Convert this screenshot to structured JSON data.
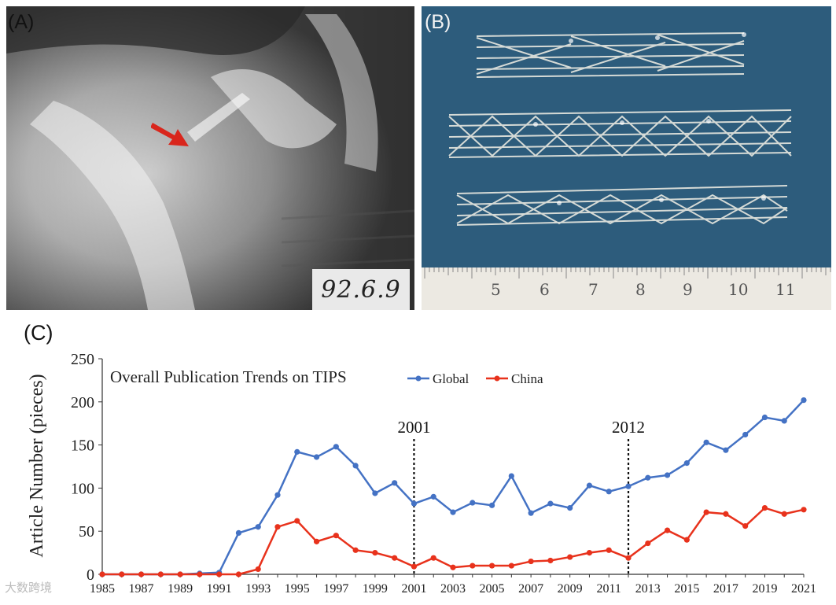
{
  "panels": {
    "a": {
      "label": "(A)",
      "date_stamp": "92.6.9"
    },
    "b": {
      "label": "(B)",
      "ruler_numbers": [
        "5",
        "6",
        "7",
        "8",
        "9",
        "10",
        "11"
      ]
    },
    "c": {
      "label": "(C)"
    }
  },
  "colors": {
    "global": "#4472c4",
    "china": "#e8321c",
    "arrow": "#d9261c"
  },
  "chart_data": {
    "type": "line",
    "title": "Overall Publication Trends on TIPS",
    "ylabel": "Article Number (pieces)",
    "xlabel": "",
    "ylim": [
      0,
      250
    ],
    "yticks": [
      0,
      50,
      100,
      150,
      200,
      250
    ],
    "x": [
      1985,
      1986,
      1987,
      1988,
      1989,
      1990,
      1991,
      1992,
      1993,
      1994,
      1995,
      1996,
      1997,
      1998,
      1999,
      2000,
      2001,
      2002,
      2003,
      2004,
      2005,
      2006,
      2007,
      2008,
      2009,
      2010,
      2011,
      2012,
      2013,
      2014,
      2015,
      2016,
      2017,
      2018,
      2019,
      2020,
      2021
    ],
    "xtick_labels": [
      "1985",
      "1987",
      "1989",
      "1991",
      "1993",
      "1995",
      "1997",
      "1999",
      "2001",
      "2003",
      "2005",
      "2007",
      "2009",
      "2011",
      "2013",
      "2015",
      "2017",
      "2019",
      "2021"
    ],
    "xtick_years": [
      1985,
      1987,
      1989,
      1991,
      1993,
      1995,
      1997,
      1999,
      2001,
      2003,
      2005,
      2007,
      2009,
      2011,
      2013,
      2015,
      2017,
      2019,
      2021
    ],
    "series": [
      {
        "name": "Global",
        "values": [
          0,
          0,
          0,
          0,
          0,
          1,
          2,
          48,
          55,
          92,
          142,
          136,
          148,
          126,
          94,
          106,
          82,
          90,
          72,
          83,
          80,
          114,
          71,
          82,
          77,
          103,
          96,
          102,
          112,
          115,
          129,
          153,
          144,
          162,
          182,
          178,
          202
        ]
      },
      {
        "name": "China",
        "values": [
          0,
          0,
          0,
          0,
          0,
          0,
          0,
          0,
          6,
          55,
          62,
          38,
          45,
          28,
          25,
          19,
          9,
          19,
          8,
          10,
          10,
          10,
          15,
          16,
          20,
          25,
          28,
          19,
          36,
          51,
          40,
          72,
          70,
          56,
          77,
          70,
          75
        ]
      }
    ],
    "annotations": [
      {
        "year": 2001,
        "label": "2001"
      },
      {
        "year": 2012,
        "label": "2012"
      }
    ],
    "legend": "top"
  },
  "watermark": "大数跨境"
}
